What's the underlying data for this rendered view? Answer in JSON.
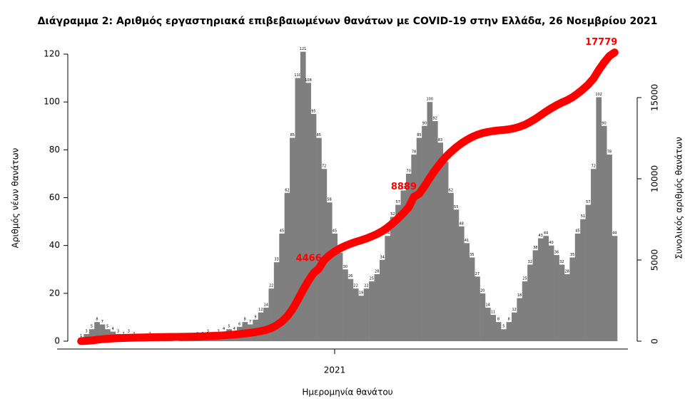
{
  "chart_data": {
    "type": "bar",
    "title": "Διάγραμμα 2: Αριθμός εργαστηριακά επιβεβαιωμένων θανάτων με COVID-19 στην Ελλάδα, 26 Νοεμβρίου 2021",
    "xlabel": "Ημερομηνία θανάτου",
    "ylabel": "Αριθμός νέων θανάτων",
    "y2label": "Συνολικός αριθμός θανάτων",
    "categories": [
      null,
      null,
      null,
      null,
      null,
      null,
      null,
      null,
      null,
      null,
      null,
      null,
      null,
      null,
      null,
      null,
      null,
      null,
      null,
      null,
      null,
      null,
      null,
      null,
      null,
      null,
      null,
      null,
      null,
      null,
      null,
      null,
      null,
      null,
      null,
      null,
      null,
      null,
      null,
      null,
      null,
      null,
      null,
      null,
      null,
      null,
      null,
      null,
      "2021",
      null,
      null,
      null,
      null,
      null,
      null,
      null,
      null,
      null,
      null,
      null,
      null,
      null,
      null,
      null,
      null,
      null,
      null,
      null,
      null,
      null,
      null,
      null,
      null,
      null,
      null,
      null,
      null,
      null,
      null,
      null,
      null,
      null,
      null,
      null,
      null,
      null,
      null,
      null,
      null,
      null,
      null,
      null,
      null,
      null,
      null,
      null,
      null,
      null,
      null,
      null,
      null,
      null
    ],
    "series": [
      {
        "type": "bar",
        "color": "#7f7f7f",
        "values": [
          1,
          3,
          5,
          8,
          7,
          5,
          4,
          3,
          2,
          3,
          2,
          1,
          1,
          2,
          1,
          1,
          1,
          1,
          0,
          1,
          1,
          1,
          2,
          2,
          3,
          2,
          3,
          4,
          5,
          4,
          6,
          8,
          7,
          9,
          12,
          14,
          22,
          33,
          45,
          62,
          85,
          110,
          121,
          108,
          95,
          85,
          72,
          58,
          45,
          37,
          30,
          26,
          22,
          19,
          22,
          25,
          28,
          34,
          44,
          52,
          57,
          63,
          70,
          78,
          85,
          90,
          100,
          92,
          83,
          75,
          62,
          55,
          48,
          41,
          35,
          27,
          20,
          14,
          11,
          8,
          5,
          8,
          12,
          18,
          25,
          32,
          38,
          43,
          44,
          40,
          36,
          32,
          28,
          35,
          45,
          51,
          57,
          72,
          102,
          90,
          78,
          44
        ]
      },
      {
        "type": "line",
        "axis": "y2",
        "color": "#ff0000",
        "values": [
          5,
          21,
          46,
          87,
          123,
          149,
          169,
          185,
          195,
          210,
          221,
          226,
          231,
          241,
          246,
          251,
          257,
          262,
          262,
          267,
          272,
          277,
          287,
          298,
          313,
          323,
          339,
          359,
          385,
          405,
          436,
          477,
          513,
          559,
          621,
          693,
          806,
          975,
          1206,
          1524,
          1961,
          2525,
          3146,
          3701,
          4188,
          4466,
          4994,
          5292,
          5523,
          5713,
          5867,
          6000,
          6113,
          6210,
          6323,
          6452,
          6595,
          6770,
          6996,
          7263,
          7555,
          7879,
          8238,
          8889,
          9074,
          9536,
          10050,
          10522,
          10948,
          11333,
          11651,
          11933,
          12180,
          12390,
          12570,
          12708,
          12811,
          12883,
          12939,
          12980,
          13006,
          13047,
          13108,
          13201,
          13329,
          13494,
          13689,
          13909,
          14135,
          14340,
          14525,
          14689,
          14833,
          15012,
          15243,
          15505,
          15798,
          16168,
          16691,
          17153,
          17553,
          17779
        ],
        "value_labels": [
          null,
          null,
          null,
          null,
          null,
          null,
          null,
          null,
          null,
          null,
          null,
          null,
          null,
          null,
          null,
          null,
          null,
          null,
          null,
          null,
          null,
          null,
          null,
          null,
          null,
          null,
          null,
          null,
          null,
          null,
          null,
          null,
          null,
          null,
          null,
          null,
          null,
          null,
          null,
          null,
          null,
          null,
          null,
          null,
          null,
          "4466",
          null,
          null,
          null,
          null,
          null,
          null,
          null,
          null,
          null,
          null,
          null,
          null,
          null,
          null,
          null,
          null,
          null,
          "8889",
          null,
          null,
          null,
          null,
          null,
          null,
          null,
          null,
          null,
          null,
          null,
          null,
          null,
          null,
          null,
          null,
          null,
          null,
          null,
          null,
          null,
          null,
          null,
          null,
          null,
          null,
          null,
          null,
          null,
          null,
          null,
          null,
          null,
          null,
          null,
          null,
          null,
          "17779"
        ]
      }
    ],
    "ylim": [
      0,
      120
    ],
    "yticks": [
      0,
      20,
      40,
      60,
      80,
      100,
      120
    ],
    "y2lim": [
      0,
      17675
    ],
    "y2ticks": [
      0,
      5000,
      10000,
      15000
    ]
  }
}
